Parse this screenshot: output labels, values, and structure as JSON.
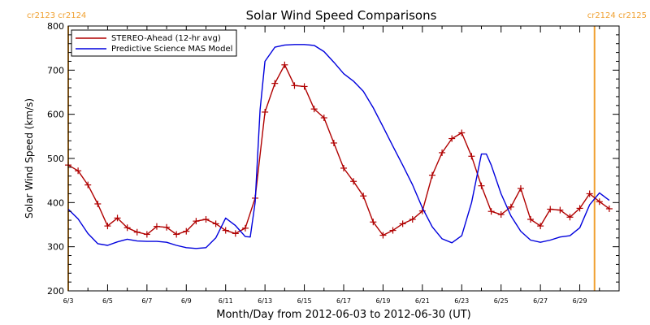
{
  "chart_data": {
    "type": "line",
    "title": "Solar Wind Speed Comparisons",
    "xlabel": "Month/Day from 2012-06-03 to 2012-06-30 (UT)",
    "ylabel": "Solar Wind Speed (km/s)",
    "ylim": [
      200,
      800
    ],
    "xlim": [
      "2012-06-03",
      "2012-06-30"
    ],
    "x_ticks": [
      "6/3",
      "6/5",
      "6/7",
      "6/9",
      "6/11",
      "6/13",
      "6/15",
      "6/17",
      "6/19",
      "6/21",
      "6/23",
      "6/25",
      "6/27",
      "6/29"
    ],
    "y_ticks": [
      200,
      300,
      400,
      500,
      600,
      700,
      800
    ],
    "grid": false,
    "legend": "top-left",
    "carrington_labels": {
      "left": "cr2123 cr2124",
      "right": "cr2124 cr2125"
    },
    "carrington_markers": [
      "2012-06-03",
      "2012-06-29 18:00"
    ],
    "colors": {
      "stereo": "#b00000",
      "mas": "#0000dd",
      "markers": "#f0a030"
    },
    "series": [
      {
        "name": "STEREO-Ahead (12-hr avg)",
        "marker": "plus",
        "points": [
          [
            "2012-06-03 00:00",
            485
          ],
          [
            "2012-06-03 12:00",
            472
          ],
          [
            "2012-06-04 00:00",
            440
          ],
          [
            "2012-06-04 12:00",
            397
          ],
          [
            "2012-06-05 00:00",
            347
          ],
          [
            "2012-06-05 12:00",
            365
          ],
          [
            "2012-06-06 00:00",
            343
          ],
          [
            "2012-06-06 12:00",
            333
          ],
          [
            "2012-06-07 00:00",
            328
          ],
          [
            "2012-06-07 12:00",
            346
          ],
          [
            "2012-06-08 00:00",
            344
          ],
          [
            "2012-06-08 12:00",
            328
          ],
          [
            "2012-06-09 00:00",
            335
          ],
          [
            "2012-06-09 12:00",
            358
          ],
          [
            "2012-06-10 00:00",
            362
          ],
          [
            "2012-06-10 12:00",
            352
          ],
          [
            "2012-06-11 00:00",
            337
          ],
          [
            "2012-06-11 12:00",
            330
          ],
          [
            "2012-06-12 00:00",
            342
          ],
          [
            "2012-06-12 12:00",
            410
          ],
          [
            "2012-06-13 00:00",
            605
          ],
          [
            "2012-06-13 12:00",
            670
          ],
          [
            "2012-06-14 00:00",
            712
          ],
          [
            "2012-06-14 12:00",
            665
          ],
          [
            "2012-06-15 00:00",
            663
          ],
          [
            "2012-06-15 12:00",
            612
          ],
          [
            "2012-06-16 00:00",
            592
          ],
          [
            "2012-06-16 12:00",
            535
          ],
          [
            "2012-06-17 00:00",
            478
          ],
          [
            "2012-06-17 12:00",
            448
          ],
          [
            "2012-06-18 00:00",
            415
          ],
          [
            "2012-06-18 12:00",
            356
          ],
          [
            "2012-06-19 00:00",
            326
          ],
          [
            "2012-06-19 12:00",
            337
          ],
          [
            "2012-06-20 00:00",
            352
          ],
          [
            "2012-06-20 12:00",
            362
          ],
          [
            "2012-06-21 00:00",
            381
          ],
          [
            "2012-06-21 12:00",
            462
          ],
          [
            "2012-06-22 00:00",
            513
          ],
          [
            "2012-06-22 12:00",
            545
          ],
          [
            "2012-06-23 00:00",
            558
          ],
          [
            "2012-06-23 12:00",
            505
          ],
          [
            "2012-06-24 00:00",
            438
          ],
          [
            "2012-06-24 12:00",
            380
          ],
          [
            "2012-06-25 00:00",
            373
          ],
          [
            "2012-06-25 12:00",
            390
          ],
          [
            "2012-06-26 00:00",
            432
          ],
          [
            "2012-06-26 12:00",
            362
          ],
          [
            "2012-06-27 00:00",
            347
          ],
          [
            "2012-06-27 12:00",
            385
          ],
          [
            "2012-06-28 00:00",
            383
          ],
          [
            "2012-06-28 12:00",
            367
          ],
          [
            "2012-06-29 00:00",
            387
          ],
          [
            "2012-06-29 12:00",
            420
          ],
          [
            "2012-06-30 00:00",
            402
          ],
          [
            "2012-06-30 12:00",
            386
          ]
        ]
      },
      {
        "name": "Predictive Science MAS Model",
        "marker": "none",
        "points": [
          [
            "2012-06-03 00:00",
            385
          ],
          [
            "2012-06-03 12:00",
            363
          ],
          [
            "2012-06-04 00:00",
            330
          ],
          [
            "2012-06-04 12:00",
            307
          ],
          [
            "2012-06-05 00:00",
            303
          ],
          [
            "2012-06-05 12:00",
            311
          ],
          [
            "2012-06-06 00:00",
            317
          ],
          [
            "2012-06-06 12:00",
            313
          ],
          [
            "2012-06-07 00:00",
            312
          ],
          [
            "2012-06-07 12:00",
            312
          ],
          [
            "2012-06-08 00:00",
            310
          ],
          [
            "2012-06-08 12:00",
            303
          ],
          [
            "2012-06-09 00:00",
            298
          ],
          [
            "2012-06-09 12:00",
            296
          ],
          [
            "2012-06-10 00:00",
            298
          ],
          [
            "2012-06-10 12:00",
            320
          ],
          [
            "2012-06-11 00:00",
            365
          ],
          [
            "2012-06-11 12:00",
            348
          ],
          [
            "2012-06-12 00:00",
            323
          ],
          [
            "2012-06-12 06:00",
            322
          ],
          [
            "2012-06-12 12:00",
            400
          ],
          [
            "2012-06-12 18:00",
            610
          ],
          [
            "2012-06-13 00:00",
            720
          ],
          [
            "2012-06-13 12:00",
            752
          ],
          [
            "2012-06-14 00:00",
            757
          ],
          [
            "2012-06-14 12:00",
            758
          ],
          [
            "2012-06-15 00:00",
            758
          ],
          [
            "2012-06-15 12:00",
            756
          ],
          [
            "2012-06-16 00:00",
            742
          ],
          [
            "2012-06-16 12:00",
            718
          ],
          [
            "2012-06-17 00:00",
            692
          ],
          [
            "2012-06-17 12:00",
            675
          ],
          [
            "2012-06-18 00:00",
            652
          ],
          [
            "2012-06-18 12:00",
            615
          ],
          [
            "2012-06-19 00:00",
            572
          ],
          [
            "2012-06-19 12:00",
            528
          ],
          [
            "2012-06-20 00:00",
            485
          ],
          [
            "2012-06-20 12:00",
            440
          ],
          [
            "2012-06-21 00:00",
            388
          ],
          [
            "2012-06-21 12:00",
            345
          ],
          [
            "2012-06-22 00:00",
            318
          ],
          [
            "2012-06-22 12:00",
            309
          ],
          [
            "2012-06-23 00:00",
            325
          ],
          [
            "2012-06-23 12:00",
            400
          ],
          [
            "2012-06-24 00:00",
            510
          ],
          [
            "2012-06-24 06:00",
            510
          ],
          [
            "2012-06-24 12:00",
            485
          ],
          [
            "2012-06-25 00:00",
            420
          ],
          [
            "2012-06-25 12:00",
            370
          ],
          [
            "2012-06-26 00:00",
            335
          ],
          [
            "2012-06-26 12:00",
            315
          ],
          [
            "2012-06-27 00:00",
            310
          ],
          [
            "2012-06-27 12:00",
            315
          ],
          [
            "2012-06-28 00:00",
            322
          ],
          [
            "2012-06-28 12:00",
            325
          ],
          [
            "2012-06-29 00:00",
            343
          ],
          [
            "2012-06-29 12:00",
            395
          ],
          [
            "2012-06-30 00:00",
            422
          ],
          [
            "2012-06-30 12:00",
            405
          ]
        ]
      }
    ]
  }
}
